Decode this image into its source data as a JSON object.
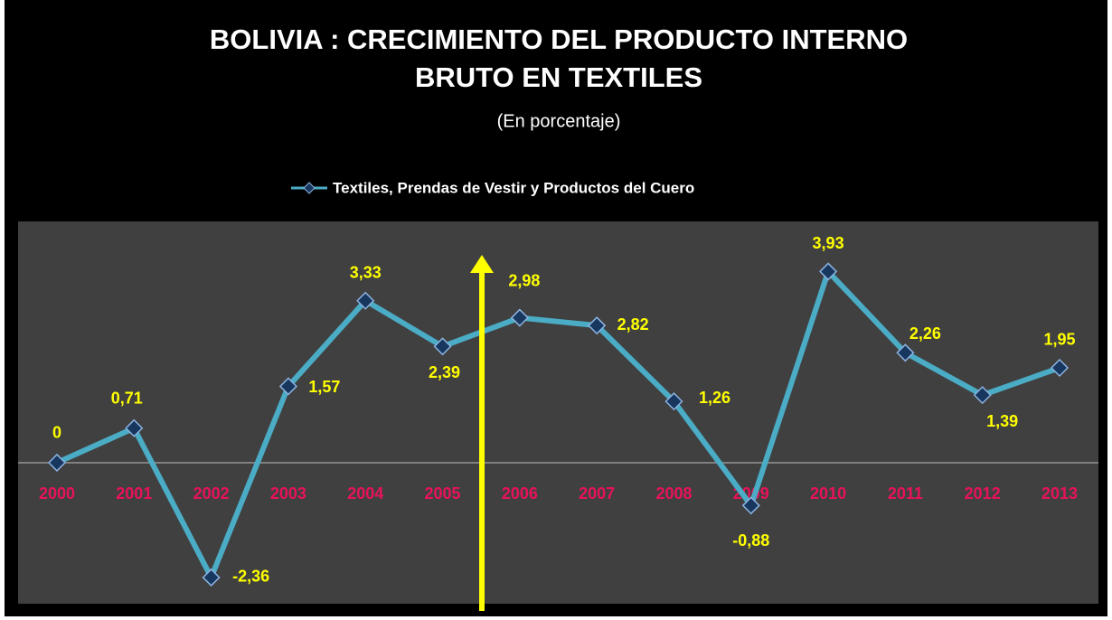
{
  "chart_data": {
    "type": "line",
    "title": "BOLIVIA : CRECIMIENTO DEL PRODUCTO INTERNO",
    "title_line2": "BRUTO EN TEXTILES",
    "subtitle": "(En porcentaje)",
    "categories": [
      "2000",
      "2001",
      "2002",
      "2003",
      "2004",
      "2005",
      "2006",
      "2007",
      "2008",
      "2009",
      "2010",
      "2011",
      "2012",
      "2013"
    ],
    "series": [
      {
        "name": "Textiles, Prendas de Vestir y Productos del Cuero",
        "color": "#4bacc6",
        "values": [
          0,
          0.71,
          -2.36,
          1.57,
          3.33,
          2.39,
          2.98,
          2.82,
          1.26,
          -0.88,
          3.93,
          2.26,
          1.39,
          1.95
        ],
        "value_labels": [
          "0",
          "0,71",
          "-2,36",
          "1,57",
          "3,33",
          "2,39",
          "2,98",
          "2,82",
          "1,26",
          "-0,88",
          "3,93",
          "2,26",
          "1,39",
          "1,95"
        ]
      }
    ],
    "ylim": [
      -2.9,
      4.96
    ],
    "legend": "top"
  }
}
